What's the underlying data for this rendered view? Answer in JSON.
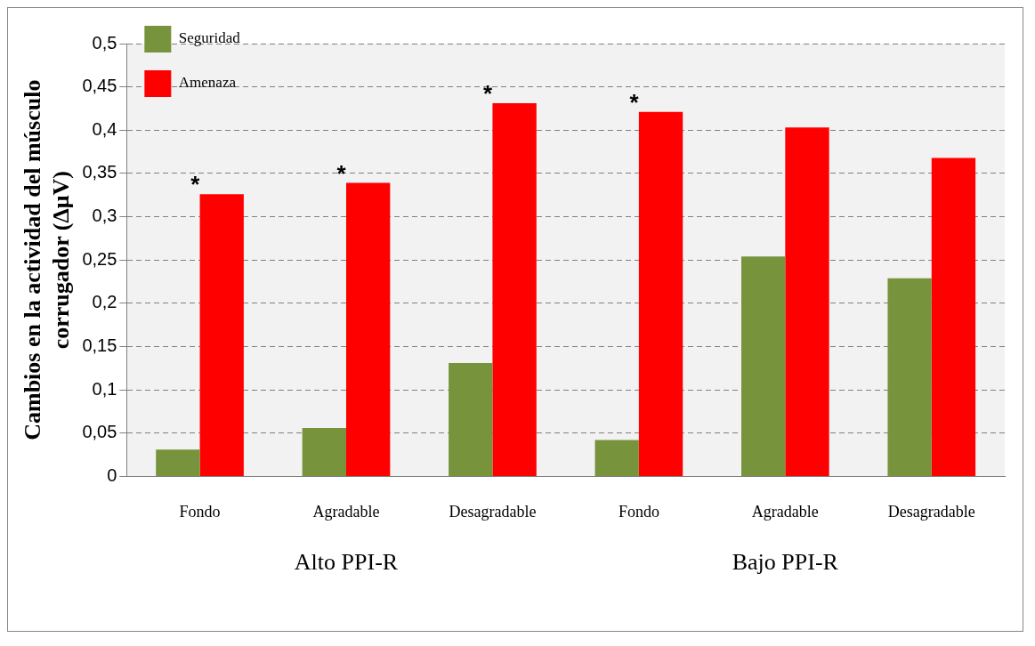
{
  "chart_data": {
    "type": "bar",
    "categories": [
      "Fondo",
      "Agradable",
      "Desagradable",
      "Fondo",
      "Agradable",
      "Desagradable"
    ],
    "series": [
      {
        "name": "Seguridad",
        "color": "#77933c",
        "values": [
          0.031,
          0.056,
          0.131,
          0.042,
          0.254,
          0.229
        ]
      },
      {
        "name": "Amenaza",
        "color": "#ff0000",
        "values": [
          0.326,
          0.339,
          0.431,
          0.421,
          0.403,
          0.368
        ],
        "value_labels": [
          "*",
          "*",
          "*",
          "*",
          null,
          null
        ]
      }
    ],
    "ylabel": "Cambios en la actividad del músculo corrugador (ΔμV)",
    "ylim": [
      0,
      0.5
    ],
    "yticks": [
      0,
      {
        "value": 0.05,
        "label": "0,05"
      },
      {
        "value": 0.1,
        "label": "0,1"
      },
      {
        "value": 0.15,
        "label": "0,15"
      },
      {
        "value": 0.2,
        "label": "0,2"
      },
      {
        "value": 0.25,
        "label": "0,25"
      },
      {
        "value": 0.3,
        "label": "0,3"
      },
      {
        "value": 0.35,
        "label": "0,35"
      },
      {
        "value": 0.4,
        "label": "0,4"
      },
      {
        "value": 0.45,
        "label": "0,45"
      },
      {
        "value": 0.5,
        "label": "0,5"
      }
    ],
    "grid": "y",
    "legend": "top left",
    "annotations": [
      "Alto PPI-R",
      "Bajo PPI-R"
    ]
  }
}
